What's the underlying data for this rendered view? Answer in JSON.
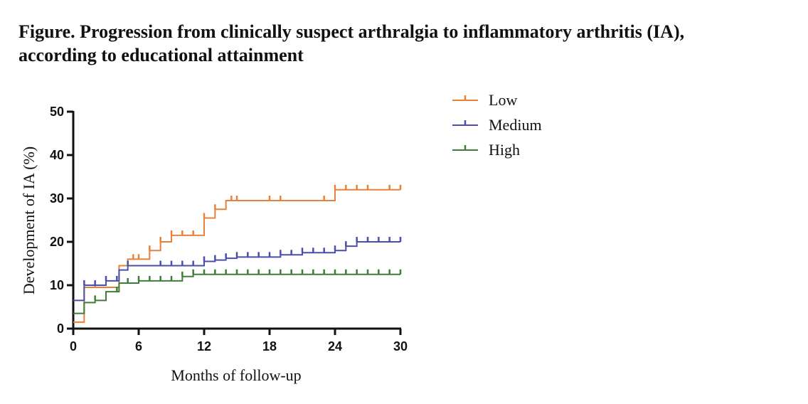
{
  "chart_data": {
    "type": "line",
    "title_line1": "Figure. Progression from clinically suspect arthralgia to inflammatory arthritis (IA),",
    "title_line2": "according to educational attainment",
    "xlabel": "Months of follow-up",
    "ylabel": "Development of IA (%)",
    "xlim": [
      0,
      30
    ],
    "ylim": [
      0,
      50
    ],
    "x_ticks": [
      0,
      6,
      12,
      18,
      24,
      30
    ],
    "y_ticks": [
      0,
      10,
      20,
      30,
      40,
      50
    ],
    "grid": false,
    "legend_position": "top-right",
    "series": [
      {
        "name": "Low",
        "color": "#E8813A",
        "steps": [
          [
            0,
            1.5
          ],
          [
            1,
            9.5
          ],
          [
            3,
            9.5
          ],
          [
            4.2,
            14.5
          ],
          [
            5,
            16
          ],
          [
            7,
            18
          ],
          [
            8,
            20
          ],
          [
            9,
            21.5
          ],
          [
            12,
            25.5
          ],
          [
            13,
            27.5
          ],
          [
            14,
            29.5
          ],
          [
            24,
            32
          ],
          [
            30,
            32
          ]
        ],
        "censor": [
          2,
          5.5,
          6,
          7,
          8,
          9,
          10,
          11,
          12,
          13,
          14.5,
          15,
          18,
          19,
          23,
          24,
          25,
          26,
          27,
          29,
          30
        ]
      },
      {
        "name": "Medium",
        "color": "#4A4FAE",
        "steps": [
          [
            0,
            6.5
          ],
          [
            1,
            10
          ],
          [
            3,
            11
          ],
          [
            4.2,
            13.5
          ],
          [
            5,
            14.5
          ],
          [
            12,
            15.5
          ],
          [
            13,
            15.8
          ],
          [
            14,
            16.2
          ],
          [
            15,
            16.5
          ],
          [
            19,
            17
          ],
          [
            21,
            17.5
          ],
          [
            24,
            18
          ],
          [
            25,
            19
          ],
          [
            26,
            20
          ],
          [
            30,
            20
          ]
        ],
        "censor": [
          1,
          2,
          3,
          4,
          5,
          8,
          9,
          10,
          11,
          12,
          13,
          14,
          15,
          16,
          17,
          18,
          19,
          20,
          21,
          22,
          23,
          24,
          25,
          26,
          27,
          28,
          29,
          30
        ]
      },
      {
        "name": "High",
        "color": "#3F7D3A",
        "steps": [
          [
            0,
            3.5
          ],
          [
            1,
            6
          ],
          [
            2,
            6.5
          ],
          [
            3,
            8.5
          ],
          [
            4.2,
            10.5
          ],
          [
            6,
            11
          ],
          [
            10,
            12
          ],
          [
            11,
            12.5
          ],
          [
            30,
            12.5
          ]
        ],
        "censor": [
          2,
          4,
          5,
          6,
          7,
          8,
          9,
          10,
          11,
          12,
          13,
          14,
          15,
          16,
          17,
          18,
          19,
          20,
          21,
          22,
          23,
          24,
          25,
          26,
          27,
          28,
          29,
          30
        ]
      }
    ]
  }
}
